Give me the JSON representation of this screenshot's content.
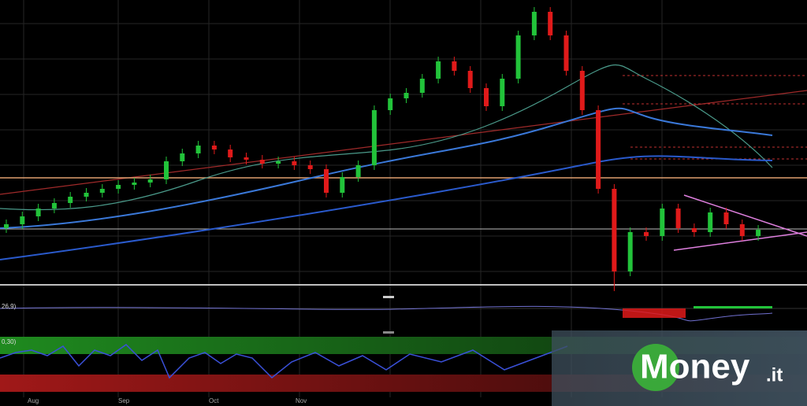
{
  "chart_data": {
    "type": "candlestick",
    "up_color": "#22c33a",
    "down_color": "#e01a1a",
    "ylim": [
      0,
      370
    ],
    "open": [
      80,
      85,
      95,
      105,
      112,
      120,
      125,
      130,
      135,
      138,
      142,
      165,
      175,
      185,
      180,
      170,
      167,
      162,
      165,
      160,
      155,
      125,
      145,
      160,
      230,
      245,
      252,
      270,
      292,
      280,
      258,
      235,
      270,
      325,
      355,
      325,
      280,
      230,
      130,
      25,
      75,
      70,
      105,
      80,
      75,
      100,
      85,
      70
    ],
    "high": [
      91,
      101,
      111,
      118,
      126,
      131,
      136,
      141,
      144,
      148,
      171,
      181,
      191,
      191,
      186,
      176,
      173,
      171,
      171,
      166,
      161,
      151,
      166,
      236,
      251,
      258,
      276,
      298,
      298,
      286,
      264,
      276,
      331,
      361,
      361,
      331,
      286,
      236,
      136,
      81,
      81,
      111,
      111,
      86,
      106,
      106,
      91,
      84
    ],
    "low": [
      74,
      79,
      89,
      99,
      106,
      114,
      119,
      124,
      129,
      132,
      136,
      159,
      169,
      174,
      164,
      161,
      156,
      156,
      154,
      149,
      119,
      119,
      139,
      154,
      224,
      239,
      246,
      264,
      274,
      252,
      229,
      229,
      264,
      319,
      319,
      274,
      224,
      124,
      0,
      19,
      64,
      64,
      74,
      69,
      69,
      79,
      64,
      64
    ],
    "close": [
      85,
      95,
      105,
      112,
      120,
      125,
      130,
      135,
      138,
      142,
      165,
      175,
      185,
      180,
      170,
      167,
      162,
      165,
      160,
      155,
      125,
      145,
      160,
      230,
      245,
      252,
      270,
      292,
      280,
      258,
      235,
      270,
      325,
      355,
      325,
      280,
      230,
      130,
      25,
      75,
      70,
      105,
      80,
      75,
      100,
      85,
      70,
      78
    ],
    "x_labels": [
      "Aug",
      "Sep",
      "Oct",
      "Nov"
    ],
    "macd_label": "26,9)",
    "rsi_label": "0,30)"
  },
  "logo": {
    "brand": "Money",
    "suffix": ".it"
  }
}
